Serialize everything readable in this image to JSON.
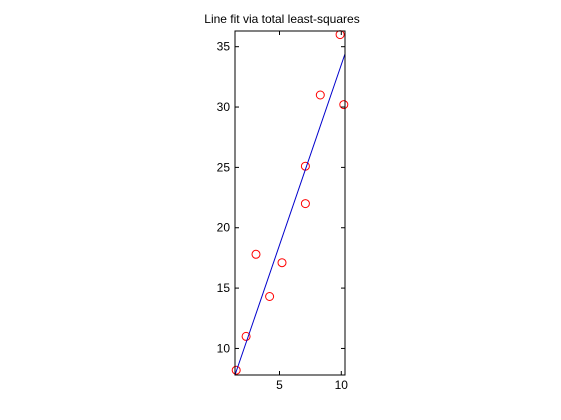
{
  "chart_data": {
    "type": "scatter",
    "title": "Line fit via total least-squares",
    "xlabel": "",
    "ylabel": "",
    "xlim": [
      1.4,
      10.3
    ],
    "ylim": [
      7.8,
      36.3
    ],
    "x_ticks": [
      5,
      10
    ],
    "y_ticks": [
      10,
      15,
      20,
      25,
      30,
      35
    ],
    "x_tick_labels": [
      "5",
      "10"
    ],
    "y_tick_labels": [
      "10",
      "15",
      "20",
      "25",
      "30",
      "35"
    ],
    "grid": false,
    "legend": "none",
    "series": [
      {
        "kind": "points",
        "marker": "open-circle",
        "color": "#ff0000",
        "x": [
          1.5,
          2.3,
          3.1,
          4.2,
          5.2,
          7.1,
          7.1,
          8.3,
          9.9,
          10.2
        ],
        "y": [
          8.2,
          11.0,
          17.8,
          14.3,
          17.1,
          22.0,
          25.1,
          31.0,
          36.0,
          30.2
        ]
      },
      {
        "kind": "line",
        "color": "#0000cc",
        "x": [
          1.4,
          10.3
        ],
        "y": [
          7.8,
          34.4
        ]
      }
    ]
  }
}
